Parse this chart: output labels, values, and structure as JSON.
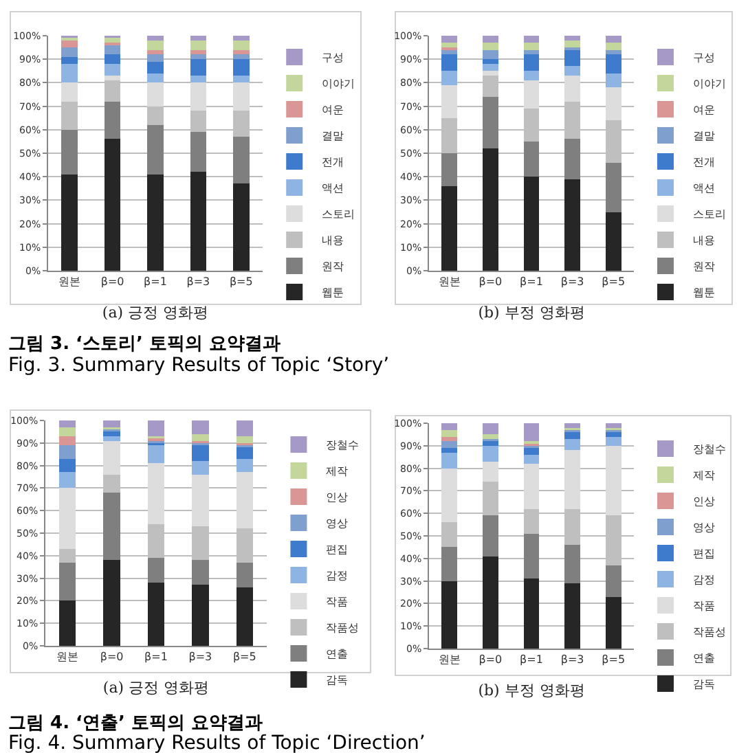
{
  "chart_data": [
    {
      "type": "bar",
      "stacked": true,
      "xlabel": "(a) 긍정 영화평",
      "annotations": [
        "그림 3. ‘스토리’ 토픽의 요약결과",
        "Fig. 3. Summary Results of Topic ‘Story’"
      ],
      "categories": [
        "원본",
        "β=0",
        "β=1",
        "β=3",
        "β=5"
      ],
      "ylim": [
        0,
        100
      ],
      "yticks": [
        {
          "value": 0,
          "label": "0%"
        },
        {
          "value": 10,
          "label": "10%"
        },
        {
          "value": 20,
          "label": "20%"
        },
        {
          "value": 30,
          "label": "30%"
        },
        {
          "value": 40,
          "label": "40%"
        },
        {
          "value": 50,
          "label": "50%"
        },
        {
          "value": 60,
          "label": "60%"
        },
        {
          "value": 70,
          "label": "70%"
        },
        {
          "value": 80,
          "label": "80%"
        },
        {
          "value": 90,
          "label": "90%"
        },
        {
          "value": 100,
          "label": "100%"
        }
      ],
      "grid": "y",
      "legend": "right",
      "series": [
        {
          "name": "웹툰",
          "color": "#262626",
          "values": [
            41,
            56,
            41,
            42,
            37
          ]
        },
        {
          "name": "원작",
          "color": "#7f7f7f",
          "values": [
            19,
            16,
            21,
            17,
            20
          ]
        },
        {
          "name": "내용",
          "color": "#bfbfbf",
          "values": [
            12,
            9,
            8,
            9,
            11
          ]
        },
        {
          "name": "스토리",
          "color": "#dddddd",
          "values": [
            8,
            2,
            10,
            12,
            12
          ]
        },
        {
          "name": "액션",
          "color": "#8db4e2",
          "values": [
            8,
            5,
            4,
            3,
            3
          ]
        },
        {
          "name": "전개",
          "color": "#3e7bcc",
          "values": [
            3,
            4,
            5,
            7,
            7
          ]
        },
        {
          "name": "결말",
          "color": "#7f9fcf",
          "values": [
            4,
            4,
            3,
            2,
            2
          ]
        },
        {
          "name": "여운",
          "color": "#d99694",
          "values": [
            3,
            1,
            2,
            2,
            2
          ]
        },
        {
          "name": "이야기",
          "color": "#c3d69b",
          "values": [
            1,
            2,
            4,
            4,
            4
          ]
        },
        {
          "name": "구성",
          "color": "#a799c7",
          "values": [
            1,
            1,
            2,
            2,
            2
          ]
        }
      ]
    },
    {
      "type": "bar",
      "stacked": true,
      "xlabel": "(b) 부정 영화평",
      "categories": [
        "원본",
        "β=0",
        "β=1",
        "β=3",
        "β=5"
      ],
      "ylim": [
        0,
        100
      ],
      "yticks": [
        {
          "value": 0,
          "label": "0%"
        },
        {
          "value": 10,
          "label": "10%"
        },
        {
          "value": 20,
          "label": "20%"
        },
        {
          "value": 30,
          "label": "30%"
        },
        {
          "value": 40,
          "label": "40%"
        },
        {
          "value": 50,
          "label": "50%"
        },
        {
          "value": 60,
          "label": "60%"
        },
        {
          "value": 70,
          "label": "70%"
        },
        {
          "value": 80,
          "label": "80%"
        },
        {
          "value": 90,
          "label": "90%"
        },
        {
          "value": 100,
          "label": "100%"
        }
      ],
      "grid": "y",
      "legend": "right",
      "series": [
        {
          "name": "웹툰",
          "color": "#262626",
          "values": [
            36,
            52,
            40,
            39,
            25
          ]
        },
        {
          "name": "원작",
          "color": "#7f7f7f",
          "values": [
            14,
            22,
            15,
            17,
            21
          ]
        },
        {
          "name": "내용",
          "color": "#bfbfbf",
          "values": [
            15,
            9,
            14,
            16,
            18
          ]
        },
        {
          "name": "스토리",
          "color": "#dddddd",
          "values": [
            14,
            2,
            12,
            11,
            14
          ]
        },
        {
          "name": "액션",
          "color": "#8db4e2",
          "values": [
            6,
            3,
            4,
            4,
            6
          ]
        },
        {
          "name": "전개",
          "color": "#3e7bcc",
          "values": [
            7,
            2,
            7,
            7,
            8
          ]
        },
        {
          "name": "결말",
          "color": "#7f9fcf",
          "values": [
            2,
            4,
            2,
            1,
            2
          ]
        },
        {
          "name": "여운",
          "color": "#d99694",
          "values": [
            1,
            0,
            0,
            0,
            0
          ]
        },
        {
          "name": "이야기",
          "color": "#c3d69b",
          "values": [
            2,
            3,
            3,
            3,
            3
          ]
        },
        {
          "name": "구성",
          "color": "#a799c7",
          "values": [
            3,
            3,
            3,
            2,
            3
          ]
        }
      ]
    },
    {
      "type": "bar",
      "stacked": true,
      "xlabel": "(a) 긍정 영화평",
      "annotations": [
        "그림 4. ‘연출’ 토픽의 요약결과",
        "Fig. 4. Summary Results of Topic ‘Direction’"
      ],
      "categories": [
        "원본",
        "β=0",
        "β=1",
        "β=3",
        "β=5"
      ],
      "ylim": [
        0,
        100
      ],
      "yticks": [
        {
          "value": 0,
          "label": "0%"
        },
        {
          "value": 10,
          "label": "10%"
        },
        {
          "value": 20,
          "label": "20%"
        },
        {
          "value": 30,
          "label": "30%"
        },
        {
          "value": 40,
          "label": "40%"
        },
        {
          "value": 50,
          "label": "50%"
        },
        {
          "value": 60,
          "label": "60%"
        },
        {
          "value": 70,
          "label": "70%"
        },
        {
          "value": 80,
          "label": "80%"
        },
        {
          "value": 90,
          "label": "90%"
        },
        {
          "value": 100,
          "label": "100%"
        }
      ],
      "grid": "y",
      "legend": "right",
      "series": [
        {
          "name": "감독",
          "color": "#262626",
          "values": [
            20,
            38,
            28,
            27,
            26
          ]
        },
        {
          "name": "연출",
          "color": "#7f7f7f",
          "values": [
            17,
            30,
            11,
            11,
            11
          ]
        },
        {
          "name": "작품성",
          "color": "#bfbfbf",
          "values": [
            6,
            8,
            15,
            15,
            15
          ]
        },
        {
          "name": "작품",
          "color": "#dddddd",
          "values": [
            27,
            15,
            27,
            23,
            25
          ]
        },
        {
          "name": "감정",
          "color": "#8db4e2",
          "values": [
            7,
            2,
            8,
            6,
            6
          ]
        },
        {
          "name": "편집",
          "color": "#3e7bcc",
          "values": [
            6,
            2,
            1,
            7,
            5
          ]
        },
        {
          "name": "영상",
          "color": "#7f9fcf",
          "values": [
            6,
            1,
            1,
            1,
            1
          ]
        },
        {
          "name": "인상",
          "color": "#d99694",
          "values": [
            4,
            0,
            1,
            1,
            1
          ]
        },
        {
          "name": "제작",
          "color": "#c3d69b",
          "values": [
            4,
            1,
            1,
            3,
            3
          ]
        },
        {
          "name": "장철수",
          "color": "#a799c7",
          "values": [
            3,
            3,
            7,
            6,
            7
          ]
        }
      ]
    },
    {
      "type": "bar",
      "stacked": true,
      "xlabel": "(b) 부정 영화평",
      "categories": [
        "원본",
        "β=0",
        "β=1",
        "β=3",
        "β=5"
      ],
      "ylim": [
        0,
        100
      ],
      "yticks": [
        {
          "value": 0,
          "label": "0%"
        },
        {
          "value": 10,
          "label": "10%"
        },
        {
          "value": 20,
          "label": "20%"
        },
        {
          "value": 30,
          "label": "30%"
        },
        {
          "value": 40,
          "label": "40%"
        },
        {
          "value": 50,
          "label": "50%"
        },
        {
          "value": 60,
          "label": "60%"
        },
        {
          "value": 70,
          "label": "70%"
        },
        {
          "value": 80,
          "label": "80%"
        },
        {
          "value": 90,
          "label": "90%"
        },
        {
          "value": 100,
          "label": "100%"
        }
      ],
      "grid": "y",
      "legend": "right",
      "series": [
        {
          "name": "감독",
          "color": "#262626",
          "values": [
            30,
            41,
            31,
            29,
            23
          ]
        },
        {
          "name": "연출",
          "color": "#7f7f7f",
          "values": [
            15,
            18,
            20,
            17,
            14
          ]
        },
        {
          "name": "작품성",
          "color": "#bfbfbf",
          "values": [
            11,
            15,
            11,
            16,
            22
          ]
        },
        {
          "name": "작품",
          "color": "#dddddd",
          "values": [
            24,
            9,
            20,
            26,
            31
          ]
        },
        {
          "name": "감정",
          "color": "#8db4e2",
          "values": [
            7,
            7,
            4,
            5,
            4
          ]
        },
        {
          "name": "편집",
          "color": "#3e7bcc",
          "values": [
            2,
            2,
            3,
            3,
            2
          ]
        },
        {
          "name": "영상",
          "color": "#7f9fcf",
          "values": [
            3,
            1,
            1,
            1,
            1
          ]
        },
        {
          "name": "인상",
          "color": "#d99694",
          "values": [
            2,
            0,
            1,
            0,
            0
          ]
        },
        {
          "name": "제작",
          "color": "#c3d69b",
          "values": [
            3,
            2,
            1,
            1,
            1
          ]
        },
        {
          "name": "장철수",
          "color": "#a799c7",
          "values": [
            3,
            5,
            8,
            2,
            2
          ]
        }
      ]
    }
  ]
}
